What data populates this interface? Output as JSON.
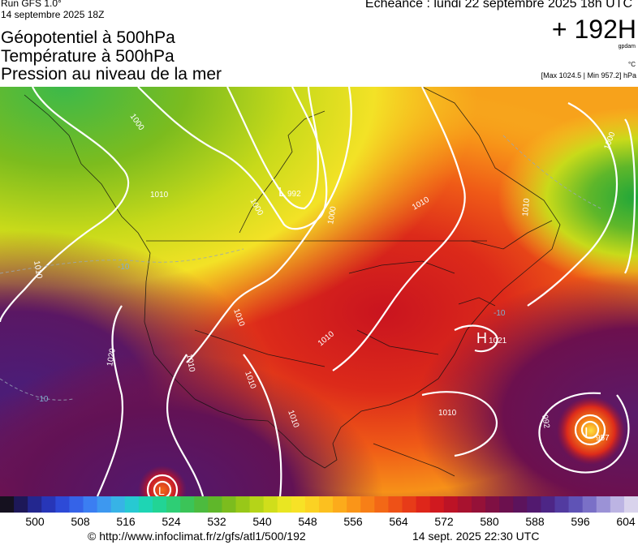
{
  "header": {
    "run_label": "Run GFS 1.0°",
    "run_date": "14 septembre 2025 18Z",
    "titles": [
      "Géopotentiel à 500hPa",
      "Température à 500hPa",
      "Pression au niveau de la mer"
    ],
    "valid_time": "Echéance : lundi 22 septembre 2025 18h UTC",
    "forecast_hour": "+ 192H",
    "unit_geopotential": "gpdam",
    "unit_temperature": "°C",
    "max_min": "[Max 1024.5 | Min 957.2] hPa"
  },
  "map": {
    "isobar_labels": [
      "1000",
      "1010",
      "1000",
      "992",
      "1000",
      "1010",
      "1000",
      "1010",
      "1010",
      "1010",
      "1010",
      "1010",
      "1010",
      "1020",
      "1010",
      "1010"
    ],
    "pressure_centers": [
      {
        "type": "L",
        "value": "992"
      },
      {
        "type": "H",
        "value": "1021"
      },
      {
        "type": "L",
        "value": "957"
      },
      {
        "type": "L",
        "value": ""
      }
    ],
    "temperature_labels": [
      "-10",
      "-10",
      "-10"
    ]
  },
  "scale": {
    "colors": [
      "#15111f",
      "#1d1858",
      "#23278f",
      "#2736b8",
      "#2d4ad7",
      "#3563e8",
      "#3b7ef2",
      "#3d98f0",
      "#37b3e6",
      "#27c9d2",
      "#1ed5b4",
      "#22d495",
      "#2ece75",
      "#3bc458",
      "#4cbb3e",
      "#5fb72a",
      "#7cbc1e",
      "#98c818",
      "#b5d418",
      "#d0de1b",
      "#e9e622",
      "#f7e226",
      "#fbd223",
      "#fcc01f",
      "#fcab1b",
      "#fa9518",
      "#f77f17",
      "#f36816",
      "#ee5117",
      "#e73b18",
      "#de261a",
      "#d0191f",
      "#bc1326",
      "#a8122f",
      "#951138",
      "#7f1043",
      "#6c104e",
      "#5c135c",
      "#52196f",
      "#4d2686",
      "#523ba0",
      "#5f53b6",
      "#7a70c7",
      "#9b92d6",
      "#bcb4e3",
      "#d9d3ec"
    ],
    "ticks": [
      "500",
      "508",
      "516",
      "524",
      "532",
      "540",
      "548",
      "556",
      "564",
      "572",
      "580",
      "588",
      "596",
      "604"
    ]
  },
  "footer": {
    "credit": "© http://www.infoclimat.fr/z/gfs/atl1/500/192",
    "stamp": "14 sept. 2025 22:30 UTC"
  }
}
